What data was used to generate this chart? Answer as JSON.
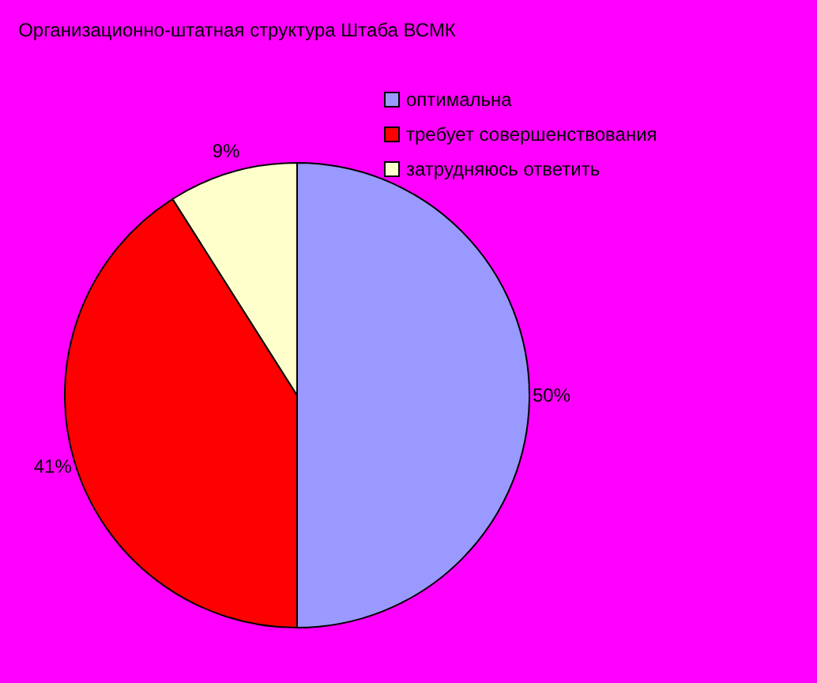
{
  "chart_data": {
    "type": "pie",
    "title": "Организационно-штатная структура Штаба ВСМК",
    "categories": [
      "оптимальна",
      "требует совершенствования",
      "затрудняюсь ответить"
    ],
    "values": [
      50,
      41,
      9
    ],
    "colors": [
      "#9999ff",
      "#ff0000",
      "#ffffcc"
    ],
    "value_labels": [
      "50%",
      "41%",
      "9%"
    ],
    "legend": "top right"
  }
}
